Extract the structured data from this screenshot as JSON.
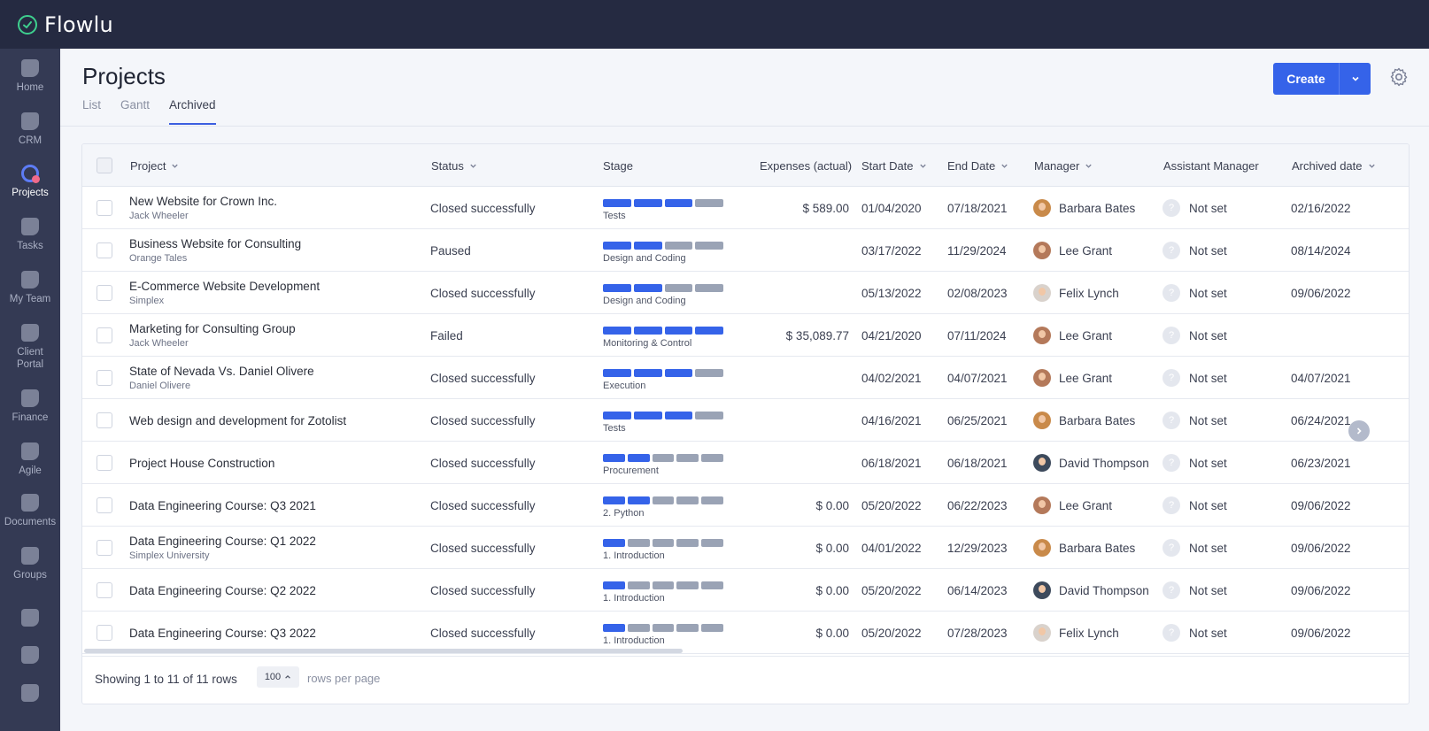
{
  "app": {
    "name": "Flowlu"
  },
  "sidebar": {
    "items": [
      {
        "label": "Home",
        "icon": "home-icon"
      },
      {
        "label": "CRM",
        "icon": "crm-icon"
      },
      {
        "label": "Projects",
        "icon": "projects-icon",
        "active": true
      },
      {
        "label": "Tasks",
        "icon": "tasks-icon"
      },
      {
        "label": "My Team",
        "icon": "team-icon"
      },
      {
        "label": "Client Portal",
        "icon": "client-portal-icon"
      },
      {
        "label": "Finance",
        "icon": "finance-icon"
      },
      {
        "label": "Agile",
        "icon": "agile-icon"
      },
      {
        "label": "Documents",
        "icon": "documents-icon"
      },
      {
        "label": "Groups",
        "icon": "groups-icon"
      }
    ],
    "bottom_icons": [
      "help-icon",
      "settings-icon",
      "feedback-icon"
    ]
  },
  "header": {
    "title": "Projects",
    "tabs": [
      {
        "label": "List"
      },
      {
        "label": "Gantt"
      },
      {
        "label": "Archived",
        "active": true
      }
    ],
    "create_label": "Create"
  },
  "table": {
    "columns": {
      "project": "Project",
      "status": "Status",
      "stage": "Stage",
      "expenses": "Expenses (actual)",
      "start": "Start Date",
      "end": "End Date",
      "manager": "Manager",
      "assistant": "Assistant Manager",
      "archived": "Archived date"
    },
    "rows": [
      {
        "name": "New Website for Crown Inc.",
        "client": "Jack Wheeler",
        "status": "Closed successfully",
        "stage": "Tests",
        "stage_filled": 3,
        "stage_total": 4,
        "expenses": "$ 589.00",
        "start": "01/04/2020",
        "end": "07/18/2021",
        "manager": "Barbara Bates",
        "assistant": "Not set",
        "archived": "02/16/2022"
      },
      {
        "name": "Business Website for Consulting",
        "client": "Orange Tales",
        "status": "Paused",
        "stage": "Design and Coding",
        "stage_filled": 2,
        "stage_total": 4,
        "expenses": "",
        "start": "03/17/2022",
        "end": "11/29/2024",
        "manager": "Lee Grant",
        "assistant": "Not set",
        "archived": "08/14/2024"
      },
      {
        "name": "E-Commerce Website Development",
        "client": "Simplex",
        "status": "Closed successfully",
        "stage": "Design and Coding",
        "stage_filled": 2,
        "stage_total": 4,
        "expenses": "",
        "start": "05/13/2022",
        "end": "02/08/2023",
        "manager": "Felix Lynch",
        "assistant": "Not set",
        "archived": "09/06/2022"
      },
      {
        "name": "Marketing for Consulting Group",
        "client": "Jack Wheeler",
        "status": "Failed",
        "stage": "Monitoring & Control",
        "stage_filled": 4,
        "stage_total": 4,
        "expenses": "$ 35,089.77",
        "start": "04/21/2020",
        "end": "07/11/2024",
        "manager": "Lee Grant",
        "assistant": "Not set",
        "archived": ""
      },
      {
        "name": "State of Nevada Vs. Daniel Olivere",
        "client": "Daniel Olivere",
        "status": "Closed successfully",
        "stage": "Execution",
        "stage_filled": 3,
        "stage_total": 4,
        "expenses": "",
        "start": "04/02/2021",
        "end": "04/07/2021",
        "manager": "Lee Grant",
        "assistant": "Not set",
        "archived": "04/07/2021"
      },
      {
        "name": "Web design and development for Zotolist",
        "client": "",
        "status": "Closed successfully",
        "stage": "Tests",
        "stage_filled": 3,
        "stage_total": 4,
        "expenses": "",
        "start": "04/16/2021",
        "end": "06/25/2021",
        "manager": "Barbara Bates",
        "assistant": "Not set",
        "archived": "06/24/2021"
      },
      {
        "name": "Project House Construction",
        "client": "",
        "status": "Closed successfully",
        "stage": "Procurement",
        "stage_filled": 2,
        "stage_total": 5,
        "expenses": "",
        "start": "06/18/2021",
        "end": "06/18/2021",
        "manager": "David Thompson",
        "assistant": "Not set",
        "archived": "06/23/2021"
      },
      {
        "name": "Data Engineering Course: Q3 2021",
        "client": "",
        "status": "Closed successfully",
        "stage": "2. Python",
        "stage_filled": 2,
        "stage_total": 5,
        "expenses": "$ 0.00",
        "start": "05/20/2022",
        "end": "06/22/2023",
        "manager": "Lee Grant",
        "assistant": "Not set",
        "archived": "09/06/2022"
      },
      {
        "name": "Data Engineering Course: Q1 2022",
        "client": "Simplex University",
        "status": "Closed successfully",
        "stage": "1. Introduction",
        "stage_filled": 1,
        "stage_total": 5,
        "expenses": "$ 0.00",
        "start": "04/01/2022",
        "end": "12/29/2023",
        "manager": "Barbara Bates",
        "assistant": "Not set",
        "archived": "09/06/2022"
      },
      {
        "name": "Data Engineering Course: Q2 2022",
        "client": "",
        "status": "Closed successfully",
        "stage": "1. Introduction",
        "stage_filled": 1,
        "stage_total": 5,
        "expenses": "$ 0.00",
        "start": "05/20/2022",
        "end": "06/14/2023",
        "manager": "David Thompson",
        "assistant": "Not set",
        "archived": "09/06/2022"
      },
      {
        "name": "Data Engineering Course: Q3 2022",
        "client": "",
        "status": "Closed successfully",
        "stage": "1. Introduction",
        "stage_filled": 1,
        "stage_total": 5,
        "expenses": "$ 0.00",
        "start": "05/20/2022",
        "end": "07/28/2023",
        "manager": "Felix Lynch",
        "assistant": "Not set",
        "archived": "09/06/2022"
      }
    ]
  },
  "footer": {
    "showing": "Showing 1 to 11 of 11 rows",
    "rows_per_page_value": "100",
    "rows_per_page_label": "rows per page"
  },
  "colors": {
    "topbar": "#252a41",
    "sidebar": "#343a54",
    "accent": "#3563e9",
    "stage_done": "#3563e9",
    "stage_pending": "#9aa3b5"
  }
}
